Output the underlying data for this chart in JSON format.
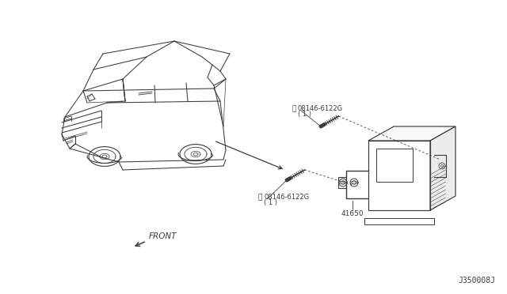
{
  "bg_color": "#ffffff",
  "line_color": "#3a3a3a",
  "text_color": "#3a3a3a",
  "fig_width": 6.4,
  "fig_height": 3.72,
  "diagram_id": "J350008J",
  "part_label_1": "08146-6122G",
  "part_label_1b": "( 1 )",
  "part_label_2": "08146-6122G",
  "part_label_2b": "( 1 )",
  "part_label_3": "41650",
  "front_label": "FRONT",
  "circle_b": "Ⓑ"
}
